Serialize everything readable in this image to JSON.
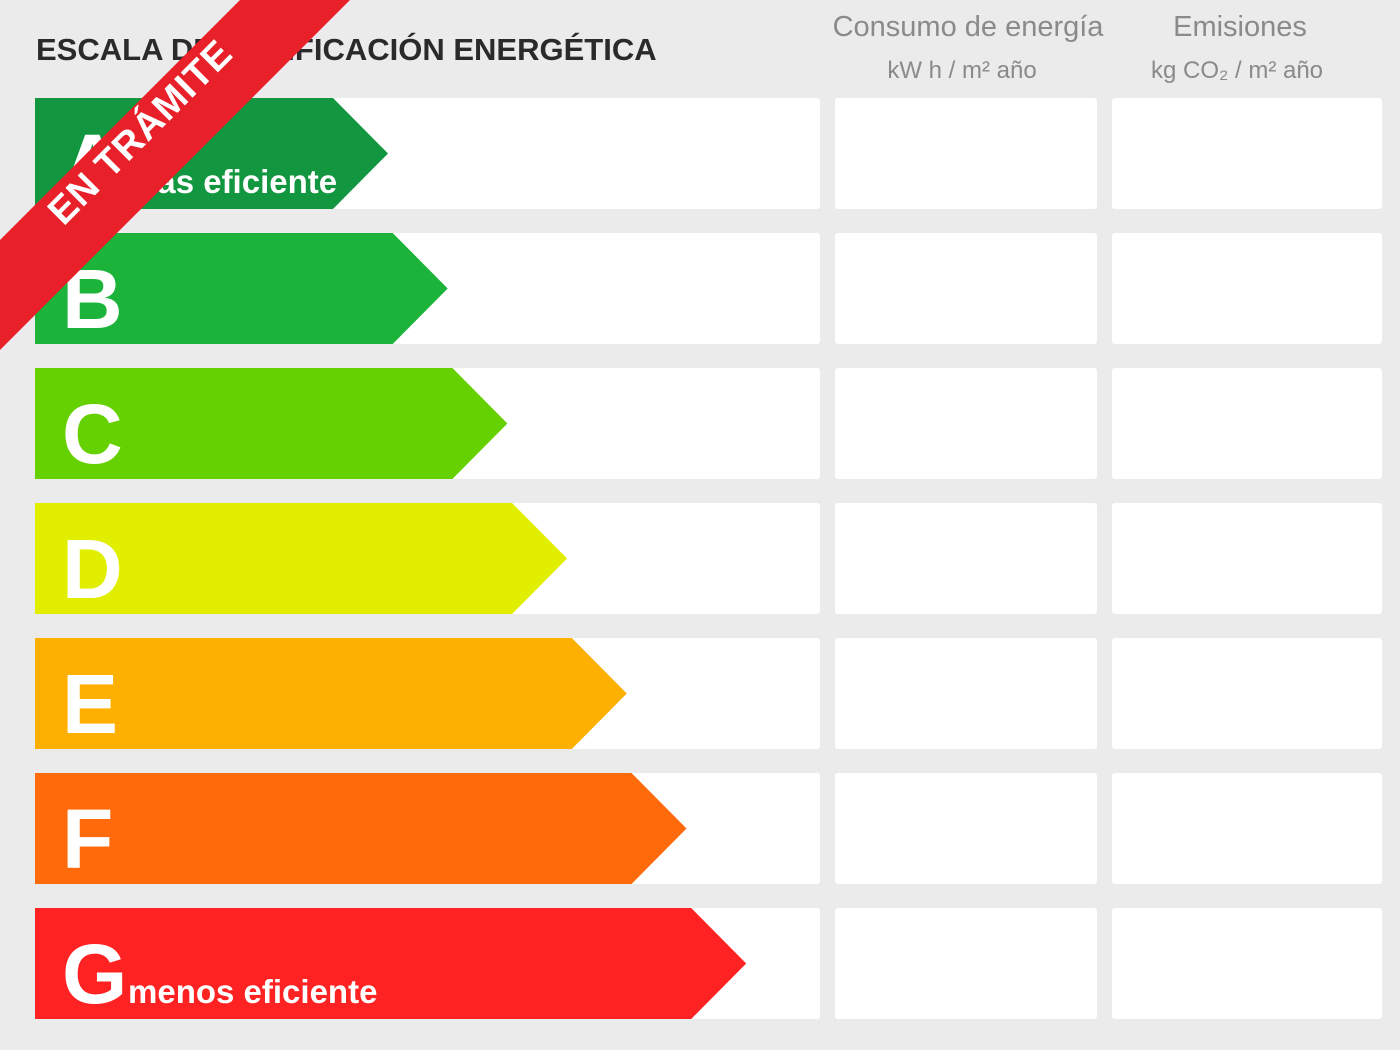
{
  "header": {
    "title": "ESCALA DE CALIFICACIÓN ENERGÉTICA",
    "columns": [
      {
        "title": "Consumo de energía",
        "unit": "kW h / m² año"
      },
      {
        "title": "Emisiones",
        "unit": "kg CO₂ / m² año"
      }
    ]
  },
  "rows": [
    {
      "letter": "A",
      "note": "más eficiente",
      "color": "#12963f"
    },
    {
      "letter": "B",
      "color": "#1bb33a"
    },
    {
      "letter": "C",
      "color": "#66d100"
    },
    {
      "letter": "D",
      "color": "#e2ee00"
    },
    {
      "letter": "E",
      "color": "#fdb000"
    },
    {
      "letter": "F",
      "color": "#ff6a0a"
    },
    {
      "letter": "G",
      "note": "menos eficiente",
      "color": "#ff2222"
    }
  ],
  "banner": "EN TRÁMITE"
}
